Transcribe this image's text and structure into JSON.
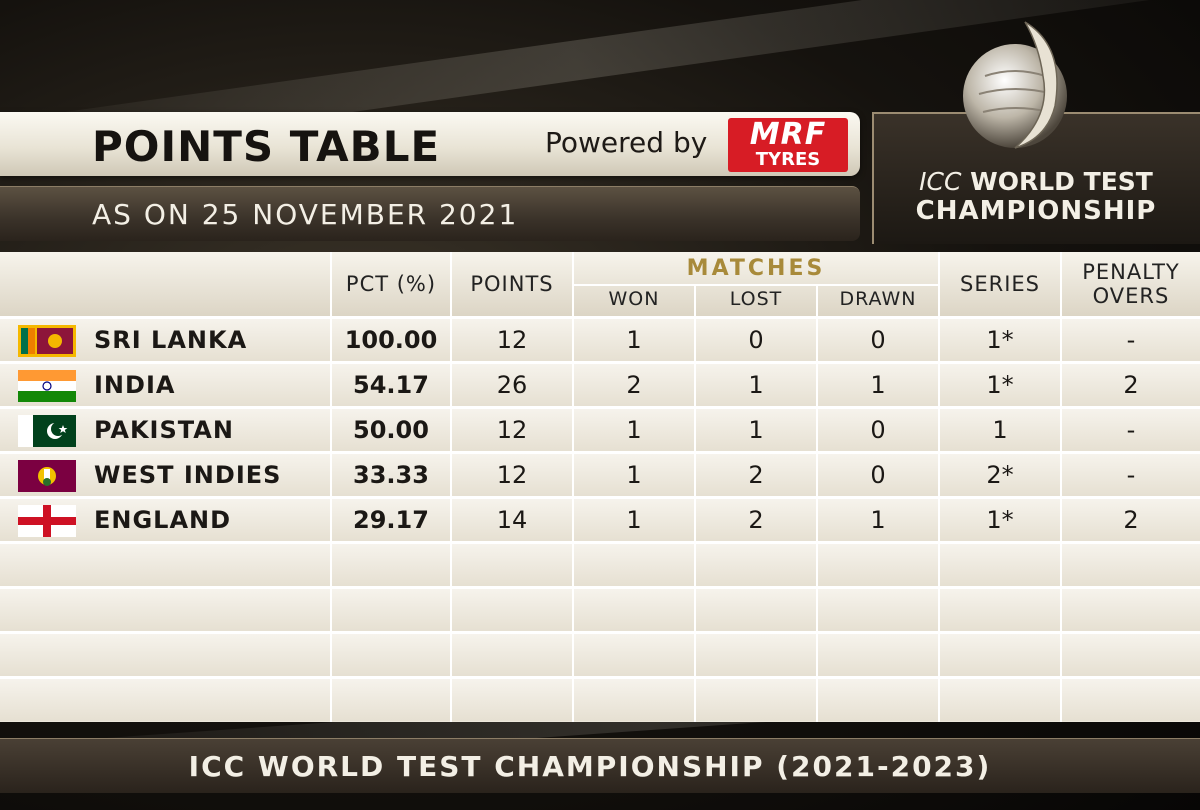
{
  "header": {
    "title": "POINTS TABLE",
    "powered_by": "Powered by",
    "sponsor_top": "MRF",
    "sponsor_bottom": "TYRES",
    "date": "AS ON 25 NOVEMBER 2021"
  },
  "logo": {
    "line1_icc": "ICC",
    "line1_rest": "WORLD TEST",
    "line2": "CHAMPIONSHIP"
  },
  "columns": {
    "pct": "PCT (%)",
    "points": "POINTS",
    "matches": "MATCHES",
    "won": "WON",
    "lost": "LOST",
    "drawn": "DRAWN",
    "series": "SERIES",
    "penalty_line1": "PENALTY",
    "penalty_line2": "OVERS"
  },
  "rows": [
    {
      "team": "SRI LANKA",
      "pct": "100.00",
      "points": "12",
      "won": "1",
      "lost": "0",
      "drawn": "0",
      "series": "1*",
      "penalty": "-",
      "flag": "sri-lanka-flag"
    },
    {
      "team": "INDIA",
      "pct": "54.17",
      "points": "26",
      "won": "2",
      "lost": "1",
      "drawn": "1",
      "series": "1*",
      "penalty": "2",
      "flag": "india-flag"
    },
    {
      "team": "PAKISTAN",
      "pct": "50.00",
      "points": "12",
      "won": "1",
      "lost": "1",
      "drawn": "0",
      "series": "1",
      "penalty": "-",
      "flag": "pakistan-flag"
    },
    {
      "team": "WEST INDIES",
      "pct": "33.33",
      "points": "12",
      "won": "1",
      "lost": "2",
      "drawn": "0",
      "series": "2*",
      "penalty": "-",
      "flag": "west-indies-flag"
    },
    {
      "team": "ENGLAND",
      "pct": "29.17",
      "points": "14",
      "won": "1",
      "lost": "2",
      "drawn": "1",
      "series": "1*",
      "penalty": "2",
      "flag": "england-flag"
    }
  ],
  "footer": "ICC WORLD TEST CHAMPIONSHIP (2021-2023)",
  "colors": {
    "accent_gold": "#a88a3a",
    "sponsor_red": "#d71c25"
  }
}
